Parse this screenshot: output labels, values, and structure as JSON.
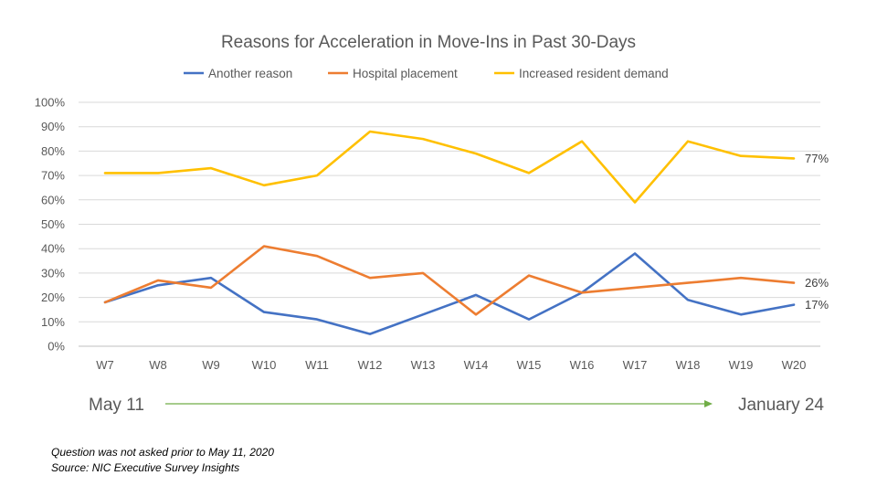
{
  "chart_data": {
    "type": "line",
    "title": "Reasons for Acceleration in Move-Ins in Past 30-Days",
    "categories": [
      "W7",
      "W8",
      "W9",
      "W10",
      "W11",
      "W12",
      "W13",
      "W14",
      "W15",
      "W16",
      "W17",
      "W18",
      "W19",
      "W20"
    ],
    "y_ticks": [
      "0%",
      "10%",
      "20%",
      "30%",
      "40%",
      "50%",
      "60%",
      "70%",
      "80%",
      "90%",
      "100%"
    ],
    "ylim": [
      0,
      100
    ],
    "grid": true,
    "legend_position": "top",
    "series": [
      {
        "name": "Another reason",
        "color": "#4472C4",
        "values": [
          18,
          25,
          28,
          14,
          11,
          5,
          13,
          21,
          11,
          22,
          38,
          19,
          13,
          17
        ],
        "end_label": "17%"
      },
      {
        "name": "Hospital placement",
        "color": "#ED7D31",
        "values": [
          18,
          27,
          24,
          41,
          37,
          28,
          30,
          13,
          29,
          22,
          24,
          26,
          28,
          26
        ],
        "end_label": "26%"
      },
      {
        "name": "Increased resident demand",
        "color": "#FFC000",
        "values": [
          71,
          71,
          73,
          66,
          70,
          88,
          85,
          79,
          71,
          84,
          59,
          84,
          78,
          77
        ],
        "end_label": "77%"
      }
    ]
  },
  "timeline": {
    "start_label": "May 11",
    "end_label": "January 24",
    "arrow_color": "#70AD47"
  },
  "footnotes": {
    "note": "Question was not asked prior to May 11, 2020",
    "source": "Source: NIC Executive Survey Insights"
  }
}
